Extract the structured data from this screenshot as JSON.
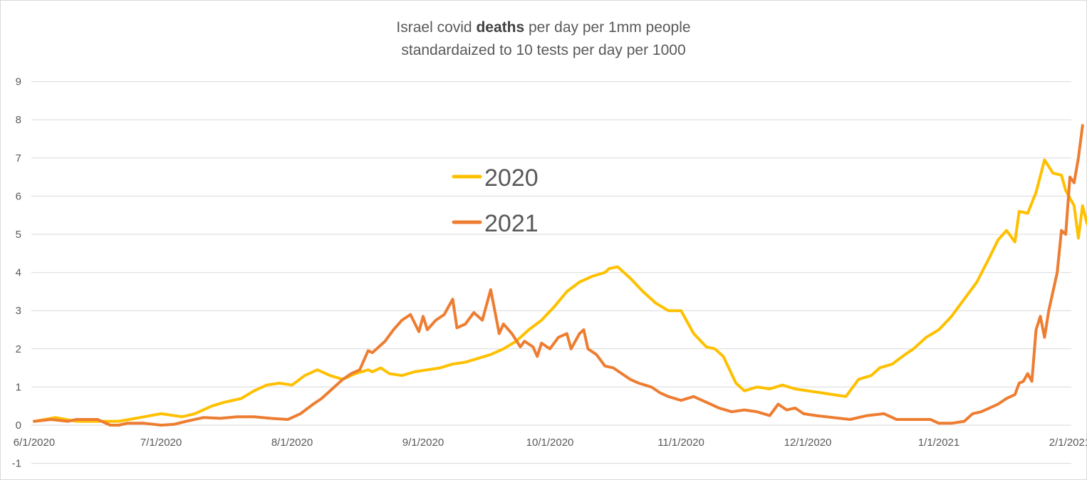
{
  "chart_data": {
    "type": "line",
    "title_lines": [
      {
        "pre": "Israel covid ",
        "bold": "deaths",
        "post": " per day per 1mm people"
      },
      {
        "pre": "standardaized to 10 tests per day per 1000",
        "bold": "",
        "post": ""
      }
    ],
    "xlabel": "",
    "ylabel": "",
    "ylim": [
      -1,
      9
    ],
    "yticks": [
      "9",
      "8",
      "7",
      "6",
      "5",
      "4",
      "3",
      "2",
      "1",
      "0",
      "-1"
    ],
    "ytick_values": [
      9,
      8,
      7,
      6,
      5,
      4,
      3,
      2,
      1,
      0,
      -1
    ],
    "xlim_days": [
      0,
      245
    ],
    "xticks": [
      {
        "label": "6/1/2020",
        "day": 0
      },
      {
        "label": "7/1/2020",
        "day": 30
      },
      {
        "label": "8/1/2020",
        "day": 61
      },
      {
        "label": "9/1/2020",
        "day": 92
      },
      {
        "label": "10/1/2020",
        "day": 122
      },
      {
        "label": "11/1/2020",
        "day": 153
      },
      {
        "label": "12/1/2020",
        "day": 183
      },
      {
        "label": "1/1/2021",
        "day": 214
      },
      {
        "label": "2/1/2021",
        "day": 245
      }
    ],
    "grid": true,
    "legend_position": "center-left",
    "series": [
      {
        "name": "2020",
        "color": "#FFC000",
        "points": [
          [
            0,
            0.1
          ],
          [
            5,
            0.2
          ],
          [
            10,
            0.1
          ],
          [
            15,
            0.1
          ],
          [
            20,
            0.1
          ],
          [
            25,
            0.2
          ],
          [
            30,
            0.3
          ],
          [
            35,
            0.22
          ],
          [
            38,
            0.3
          ],
          [
            42,
            0.5
          ],
          [
            45,
            0.6
          ],
          [
            49,
            0.7
          ],
          [
            52,
            0.9
          ],
          [
            55,
            1.05
          ],
          [
            58,
            1.1
          ],
          [
            61,
            1.05
          ],
          [
            64,
            1.3
          ],
          [
            67,
            1.45
          ],
          [
            70,
            1.3
          ],
          [
            73,
            1.2
          ],
          [
            76,
            1.35
          ],
          [
            79,
            1.45
          ],
          [
            80,
            1.4
          ],
          [
            82,
            1.5
          ],
          [
            84,
            1.35
          ],
          [
            87,
            1.3
          ],
          [
            90,
            1.4
          ],
          [
            93,
            1.45
          ],
          [
            96,
            1.5
          ],
          [
            99,
            1.6
          ],
          [
            102,
            1.65
          ],
          [
            105,
            1.75
          ],
          [
            108,
            1.85
          ],
          [
            111,
            2.0
          ],
          [
            114,
            2.2
          ],
          [
            117,
            2.5
          ],
          [
            120,
            2.75
          ],
          [
            123,
            3.1
          ],
          [
            126,
            3.5
          ],
          [
            129,
            3.75
          ],
          [
            132,
            3.9
          ],
          [
            135,
            4.0
          ],
          [
            136,
            4.1
          ],
          [
            138,
            4.15
          ],
          [
            141,
            3.85
          ],
          [
            144,
            3.5
          ],
          [
            147,
            3.2
          ],
          [
            150,
            3.0
          ],
          [
            153,
            3.0
          ],
          [
            156,
            2.4
          ],
          [
            159,
            2.05
          ],
          [
            161,
            2.0
          ],
          [
            163,
            1.8
          ],
          [
            166,
            1.1
          ],
          [
            168,
            0.9
          ],
          [
            171,
            1.0
          ],
          [
            174,
            0.95
          ],
          [
            177,
            1.05
          ],
          [
            180,
            0.95
          ],
          [
            183,
            0.9
          ],
          [
            186,
            0.85
          ],
          [
            189,
            0.8
          ],
          [
            192,
            0.75
          ],
          [
            195,
            1.2
          ],
          [
            198,
            1.3
          ],
          [
            200,
            1.5
          ],
          [
            203,
            1.6
          ],
          [
            206,
            1.85
          ],
          [
            208,
            2.0
          ],
          [
            211,
            2.3
          ],
          [
            214,
            2.5
          ],
          [
            217,
            2.85
          ],
          [
            220,
            3.3
          ],
          [
            223,
            3.75
          ],
          [
            226,
            4.4
          ],
          [
            228,
            4.85
          ],
          [
            230,
            5.1
          ],
          [
            232,
            4.8
          ],
          [
            233,
            5.6
          ],
          [
            235,
            5.55
          ],
          [
            237,
            6.1
          ],
          [
            239,
            6.95
          ],
          [
            241,
            6.6
          ],
          [
            243,
            6.55
          ],
          [
            244,
            6.15
          ],
          [
            246,
            5.75
          ],
          [
            247,
            4.9
          ],
          [
            248,
            5.75
          ],
          [
            249,
            5.3
          ],
          [
            250,
            5.1
          ]
        ]
      },
      {
        "name": "2021",
        "color": "#ED7D31",
        "points": [
          [
            0,
            0.1
          ],
          [
            4,
            0.15
          ],
          [
            8,
            0.1
          ],
          [
            10,
            0.15
          ],
          [
            13,
            0.15
          ],
          [
            15,
            0.15
          ],
          [
            18,
            0.0
          ],
          [
            20,
            0.0
          ],
          [
            22,
            0.05
          ],
          [
            26,
            0.05
          ],
          [
            30,
            0.0
          ],
          [
            33,
            0.02
          ],
          [
            36,
            0.1
          ],
          [
            40,
            0.2
          ],
          [
            44,
            0.18
          ],
          [
            48,
            0.22
          ],
          [
            52,
            0.22
          ],
          [
            56,
            0.18
          ],
          [
            60,
            0.15
          ],
          [
            63,
            0.3
          ],
          [
            66,
            0.55
          ],
          [
            68,
            0.7
          ],
          [
            71,
            1.0
          ],
          [
            73,
            1.2
          ],
          [
            75,
            1.35
          ],
          [
            77,
            1.45
          ],
          [
            79,
            1.95
          ],
          [
            80,
            1.9
          ],
          [
            83,
            2.2
          ],
          [
            85,
            2.5
          ],
          [
            87,
            2.75
          ],
          [
            89,
            2.9
          ],
          [
            91,
            2.45
          ],
          [
            92,
            2.85
          ],
          [
            93,
            2.5
          ],
          [
            95,
            2.75
          ],
          [
            97,
            2.9
          ],
          [
            99,
            3.3
          ],
          [
            100,
            2.55
          ],
          [
            102,
            2.65
          ],
          [
            104,
            2.95
          ],
          [
            106,
            2.75
          ],
          [
            108,
            3.55
          ],
          [
            110,
            2.4
          ],
          [
            111,
            2.65
          ],
          [
            113,
            2.4
          ],
          [
            115,
            2.05
          ],
          [
            116,
            2.2
          ],
          [
            118,
            2.05
          ],
          [
            119,
            1.8
          ],
          [
            120,
            2.15
          ],
          [
            122,
            2.0
          ],
          [
            124,
            2.3
          ],
          [
            126,
            2.4
          ],
          [
            127,
            2.0
          ],
          [
            129,
            2.4
          ],
          [
            130,
            2.5
          ],
          [
            131,
            2.0
          ],
          [
            133,
            1.85
          ],
          [
            135,
            1.55
          ],
          [
            137,
            1.5
          ],
          [
            139,
            1.35
          ],
          [
            141,
            1.2
          ],
          [
            143,
            1.1
          ],
          [
            146,
            1.0
          ],
          [
            148,
            0.85
          ],
          [
            150,
            0.75
          ],
          [
            153,
            0.65
          ],
          [
            156,
            0.75
          ],
          [
            158,
            0.65
          ],
          [
            160,
            0.55
          ],
          [
            162,
            0.45
          ],
          [
            165,
            0.35
          ],
          [
            168,
            0.4
          ],
          [
            171,
            0.35
          ],
          [
            174,
            0.25
          ],
          [
            176,
            0.55
          ],
          [
            178,
            0.4
          ],
          [
            180,
            0.45
          ],
          [
            182,
            0.3
          ],
          [
            185,
            0.25
          ],
          [
            189,
            0.2
          ],
          [
            193,
            0.15
          ],
          [
            197,
            0.25
          ],
          [
            201,
            0.3
          ],
          [
            204,
            0.15
          ],
          [
            208,
            0.15
          ],
          [
            212,
            0.15
          ],
          [
            214,
            0.05
          ],
          [
            217,
            0.05
          ],
          [
            220,
            0.1
          ],
          [
            222,
            0.3
          ],
          [
            224,
            0.35
          ],
          [
            226,
            0.45
          ],
          [
            228,
            0.55
          ],
          [
            230,
            0.7
          ],
          [
            232,
            0.8
          ],
          [
            233,
            1.1
          ],
          [
            234,
            1.15
          ],
          [
            235,
            1.35
          ],
          [
            236,
            1.15
          ],
          [
            237,
            2.5
          ],
          [
            238,
            2.85
          ],
          [
            239,
            2.3
          ],
          [
            240,
            3.0
          ],
          [
            242,
            4.0
          ],
          [
            243,
            5.1
          ],
          [
            244,
            5.0
          ],
          [
            245,
            6.5
          ],
          [
            246,
            6.35
          ],
          [
            247,
            7.0
          ],
          [
            248,
            7.85
          ]
        ]
      }
    ]
  },
  "legend": [
    {
      "label": "2020",
      "color": "#FFC000"
    },
    {
      "label": "2021",
      "color": "#ED7D31"
    }
  ],
  "colors": {
    "grid": "#d9d9d9",
    "text": "#595959",
    "border": "#d9d9d9"
  }
}
